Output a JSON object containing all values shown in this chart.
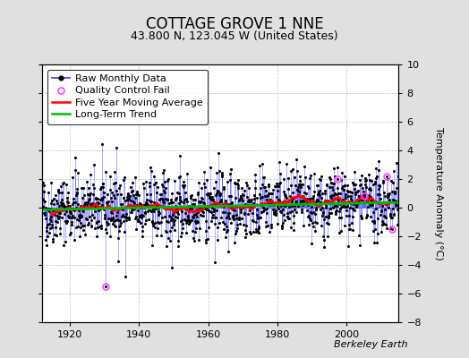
{
  "title": "COTTAGE GROVE 1 NNE",
  "subtitle": "43.800 N, 123.045 W (United States)",
  "ylabel": "Temperature Anomaly (°C)",
  "credit": "Berkeley Earth",
  "xlim": [
    1912,
    2015
  ],
  "ylim": [
    -8,
    10
  ],
  "yticks": [
    -8,
    -6,
    -4,
    -2,
    0,
    2,
    4,
    6,
    8,
    10
  ],
  "xticks": [
    1920,
    1940,
    1960,
    1980,
    2000
  ],
  "start_year": 1912,
  "end_year": 2014,
  "seed": 42,
  "background_color": "#e0e0e0",
  "plot_bg_color": "#ffffff",
  "raw_line_color": "#3333ff",
  "raw_dot_color": "#000000",
  "moving_avg_color": "#ff0000",
  "trend_color": "#00bb00",
  "qc_color": "#ff44ff",
  "title_fontsize": 12,
  "subtitle_fontsize": 9,
  "ylabel_fontsize": 8,
  "tick_fontsize": 8,
  "legend_fontsize": 8,
  "credit_fontsize": 8
}
